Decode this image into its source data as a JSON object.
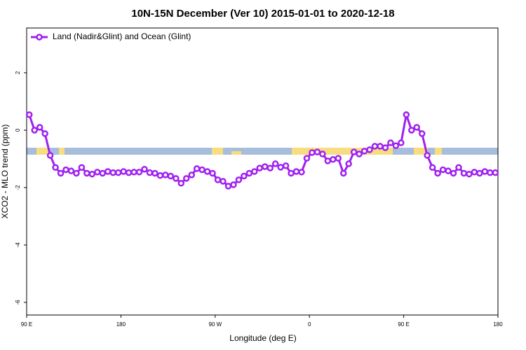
{
  "chart_data": {
    "type": "line",
    "title": "10N-15N December (Ver 10)   2015-01-01 to 2020-12-18",
    "xlabel": "Longitude (deg E)",
    "ylabel": "XCO2 - MLO trend (ppm)",
    "xlim": [
      90,
      540
    ],
    "ylim": [
      -6.44,
      3.56
    ],
    "xticks": [
      {
        "value": 90,
        "label": "90 E"
      },
      180,
      {
        "value": 270,
        "label": "90 W"
      },
      {
        "value": 360,
        "label": "0"
      },
      {
        "value": 450,
        "label": "90 E"
      },
      {
        "value": 540,
        "label": "180"
      }
    ],
    "yticks": [
      -6,
      -4,
      -2,
      0,
      2
    ],
    "legend": "top-left",
    "x": [
      92.5,
      97.5,
      102.5,
      107.5,
      112.5,
      117.5,
      122.5,
      127.5,
      132.5,
      137.5,
      142.5,
      147.5,
      152.5,
      157.5,
      162.5,
      167.5,
      172.5,
      177.5,
      182.5,
      187.5,
      192.5,
      197.5,
      202.5,
      207.5,
      212.5,
      217.5,
      222.5,
      227.5,
      232.5,
      237.5,
      242.5,
      247.5,
      252.5,
      257.5,
      262.5,
      267.5,
      272.5,
      277.5,
      282.5,
      287.5,
      292.5,
      297.5,
      302.5,
      307.5,
      312.5,
      317.5,
      322.5,
      327.5,
      332.5,
      337.5,
      342.5,
      347.5,
      352.5,
      357.5,
      362.5,
      367.5,
      372.5,
      377.5,
      382.5,
      387.5,
      392.5,
      397.5,
      402.5,
      407.5,
      412.5,
      417.5,
      422.5,
      427.5,
      432.5,
      437.5,
      442.5,
      447.5,
      452.5,
      457.5,
      462.5,
      467.5,
      472.5,
      477.5,
      482.5,
      487.5,
      492.5,
      497.5,
      502.5,
      507.5,
      512.5,
      517.5,
      522.5,
      527.5,
      532.5,
      537.5
    ],
    "series": [
      {
        "name": "Land (Nadir&Glint) and Ocean (Glint)",
        "color": "#a020f0",
        "values": [
          0.54,
          0.0,
          0.1,
          -0.12,
          -0.88,
          -1.3,
          -1.5,
          -1.38,
          -1.42,
          -1.5,
          -1.3,
          -1.5,
          -1.53,
          -1.46,
          -1.5,
          -1.44,
          -1.48,
          -1.48,
          -1.44,
          -1.48,
          -1.46,
          -1.46,
          -1.36,
          -1.48,
          -1.5,
          -1.58,
          -1.56,
          -1.6,
          -1.68,
          -1.85,
          -1.68,
          -1.56,
          -1.34,
          -1.38,
          -1.44,
          -1.5,
          -1.73,
          -1.78,
          -1.95,
          -1.9,
          -1.73,
          -1.6,
          -1.5,
          -1.44,
          -1.32,
          -1.27,
          -1.32,
          -1.17,
          -1.29,
          -1.24,
          -1.5,
          -1.44,
          -1.46,
          -0.98,
          -0.78,
          -0.76,
          -0.83,
          -1.07,
          -1.02,
          -0.98,
          -1.5,
          -1.17,
          -0.76,
          -0.83,
          -0.73,
          -0.68,
          -0.56,
          -0.56,
          -0.61,
          -0.44,
          -0.54,
          -0.44,
          0.54,
          0.0,
          0.1,
          -0.12,
          -0.88,
          -1.3,
          -1.5,
          -1.38,
          -1.42,
          -1.5,
          -1.3,
          -1.5,
          -1.53,
          -1.46,
          -1.5,
          -1.44,
          -1.48,
          -1.48
        ]
      }
    ]
  }
}
